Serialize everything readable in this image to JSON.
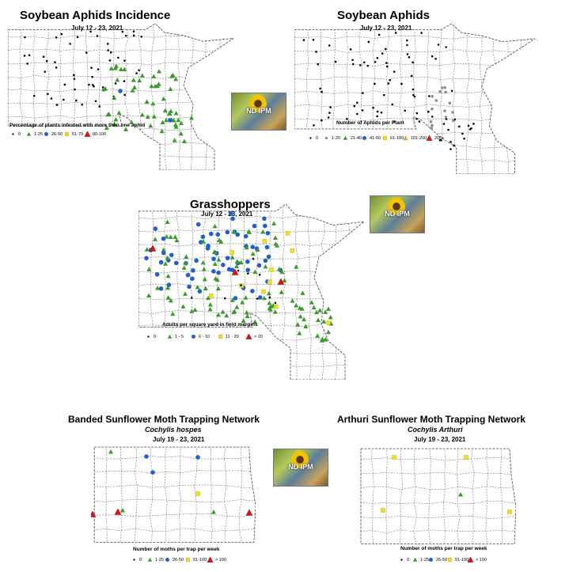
{
  "logo_text": "ND IPM",
  "maps": {
    "aphid_incidence": {
      "title": "Soybean Aphids Incidence",
      "date": "July 12 - 23, 2021",
      "legend_title": "Percentage of plants infested with more than one aphid",
      "legend": [
        "0",
        "1-25",
        "26-50",
        "51-79",
        "80-100"
      ]
    },
    "aphid_count": {
      "title": "Soybean Aphids",
      "date": "July 12 - 23, 2021",
      "legend_title": "Number of Aphids per Plant",
      "legend": [
        "0",
        "1-20",
        "21-40",
        "41-60",
        "61-100",
        "101-200",
        "200+"
      ]
    },
    "grasshoppers": {
      "title": "Grasshoppers",
      "date": "July 12 - 23, 2021",
      "legend_title": "Adults per square yard in field margins",
      "legend": [
        "0",
        "1 - 5",
        "6 - 10",
        "11 - 20",
        "> 20"
      ]
    },
    "banded_moth": {
      "title": "Banded Sunflower Moth Trapping Network",
      "species": "Cochylis hospes",
      "date": "July 19 - 23, 2021",
      "legend_title": "Number of moths per trap per week",
      "legend": [
        "0",
        "1-25",
        "26-50",
        "51-100",
        "> 100"
      ]
    },
    "arthuri_moth": {
      "title": "Arthuri Sunflower Moth Trapping Network",
      "species": "Cochylis Arthuri",
      "date": "July 19 - 23, 2021",
      "legend_title": "Number of moths per trap per week",
      "legend": [
        "0",
        "1-25",
        "26-50",
        "51-100",
        "> 100"
      ]
    }
  },
  "colors": {
    "none": "#000000",
    "low": "#3a9a2a",
    "mid": "#1f5fd0",
    "high": "#f0e020",
    "very_high": "#e01010",
    "orange": "#f0a030",
    "gray": "#8a8a8a"
  }
}
